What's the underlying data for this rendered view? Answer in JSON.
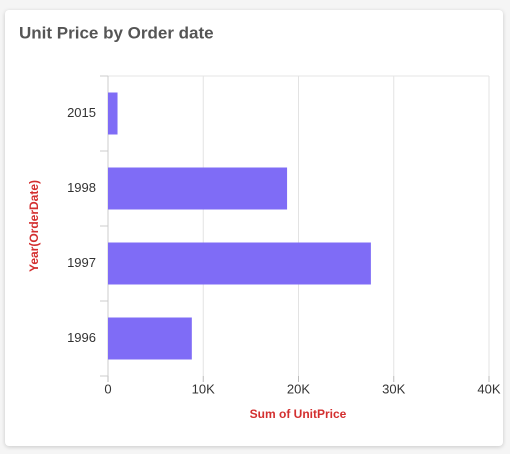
{
  "chart_data": {
    "type": "hbar",
    "title": "Unit Price by Order date",
    "x_label": "Sum of UnitPrice",
    "y_label": "Year(OrderDate)",
    "categories": [
      "2015",
      "1998",
      "1997",
      "1996"
    ],
    "values": [
      1000,
      18800,
      27600,
      8800
    ],
    "color": "#7f6cf6",
    "xlim": [
      0,
      40000
    ],
    "xticks": [
      0,
      {
        "value": 10000,
        "label": "10K"
      },
      {
        "value": 20000,
        "label": "20K"
      },
      {
        "value": 30000,
        "label": "30K"
      },
      {
        "value": 40000,
        "label": "40K"
      }
    ],
    "grid": true
  }
}
